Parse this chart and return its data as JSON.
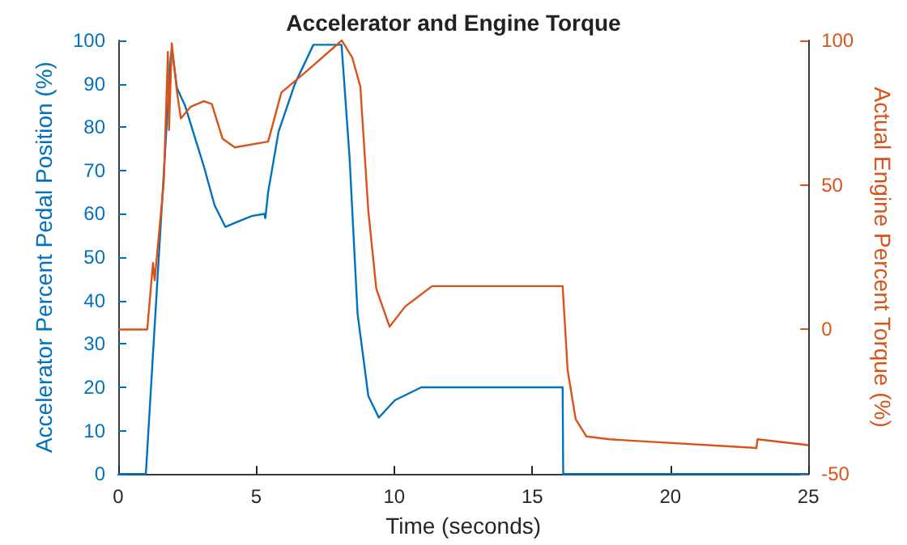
{
  "chart_data": {
    "type": "line",
    "title": "Accelerator and Engine Torque",
    "xlabel": "Time (seconds)",
    "ylabel": "Accelerator Percent Pedal Position (%)",
    "y2label": "Actual Engine Percent Torque (%)",
    "xlim": [
      0,
      25
    ],
    "xticks": [
      0,
      5,
      10,
      15,
      20,
      25
    ],
    "ylim": [
      0,
      100
    ],
    "yticks": [
      0,
      10,
      20,
      30,
      40,
      50,
      60,
      70,
      80,
      90,
      100
    ],
    "y2lim": [
      -50,
      100
    ],
    "y2ticks": [
      -50,
      0,
      50,
      100
    ],
    "grid": false,
    "marker": "none",
    "series": [
      {
        "color": "#0072bd",
        "x": [
          0,
          1.0,
          1.9,
          1.94,
          2.13,
          2.42,
          2.71,
          3.1,
          3.49,
          3.88,
          4.26,
          4.84,
          5.29,
          5.33,
          5.43,
          5.81,
          6.4,
          7.07,
          8.04,
          8.09,
          8.38,
          8.67,
          9.06,
          9.44,
          10.02,
          10.98,
          16.1,
          16.12,
          25
        ],
        "values": [
          0,
          0,
          96,
          98,
          89,
          85,
          79,
          71,
          62,
          57,
          58,
          59.5,
          60,
          59,
          65,
          79,
          90,
          99,
          99,
          99,
          73,
          37,
          18,
          13,
          17,
          20,
          20,
          0,
          0
        ]
      },
      {
        "color": "#d95319",
        "axis": "y2",
        "x": [
          0,
          1.05,
          1.26,
          1.32,
          1.65,
          1.8,
          1.84,
          1.94,
          2.13,
          2.27,
          2.62,
          3.1,
          3.39,
          3.78,
          4.22,
          5.43,
          5.91,
          6.78,
          8.1,
          8.48,
          8.77,
          9.06,
          9.35,
          9.83,
          10.4,
          11.37,
          16.1,
          16.28,
          16.57,
          16.96,
          17.8,
          23.12,
          23.16,
          25
        ],
        "values": [
          0,
          0,
          23,
          17,
          51,
          96,
          69,
          99,
          82,
          73,
          77,
          79,
          78,
          66,
          63,
          65,
          82,
          89,
          100,
          94,
          84,
          41,
          14,
          1,
          8,
          15,
          15,
          -14,
          -31,
          -37,
          -38,
          -41,
          -38,
          -40
        ]
      }
    ]
  }
}
